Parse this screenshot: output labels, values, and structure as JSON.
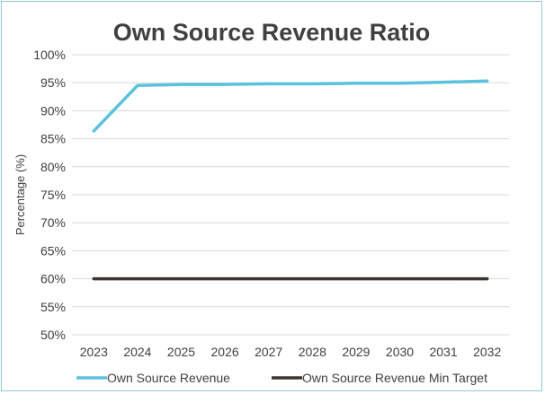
{
  "chart_data": {
    "type": "line",
    "title": "Own Source Revenue Ratio",
    "xlabel": "",
    "ylabel": "Percentage (%)",
    "categories": [
      "2023",
      "2024",
      "2025",
      "2026",
      "2027",
      "2028",
      "2029",
      "2030",
      "2031",
      "2032"
    ],
    "y_ticks": [
      "50%",
      "55%",
      "60%",
      "65%",
      "70%",
      "75%",
      "80%",
      "85%",
      "90%",
      "95%",
      "100%"
    ],
    "ylim": [
      50,
      100
    ],
    "grid": "horizontal",
    "legend": "bottom",
    "series": [
      {
        "name": "Own Source Revenue",
        "color": "#5bc2dc",
        "values": [
          86.4,
          94.5,
          94.7,
          94.7,
          94.8,
          94.8,
          94.9,
          94.9,
          95.1,
          95.3
        ]
      },
      {
        "name": "Own Source Revenue Min Target",
        "color": "#3e3533",
        "values": [
          60,
          60,
          60,
          60,
          60,
          60,
          60,
          60,
          60,
          60
        ]
      }
    ]
  }
}
